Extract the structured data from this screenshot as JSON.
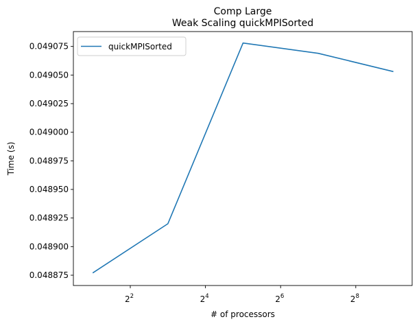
{
  "chart_data": {
    "type": "line",
    "title": "Comp Large",
    "subtitle": "Weak Scaling quickMPISorted",
    "xlabel": "# of processors",
    "ylabel": "Time (s)",
    "x_scale": "log2",
    "x": [
      2,
      8,
      32,
      128,
      512
    ],
    "series": [
      {
        "name": "quickMPISorted",
        "color": "#1f77b4",
        "values": [
          0.048877,
          0.04892,
          0.049078,
          0.049069,
          0.049053
        ]
      }
    ],
    "xticks": [
      {
        "base": "2",
        "exp": "2",
        "value": 4
      },
      {
        "base": "2",
        "exp": "4",
        "value": 16
      },
      {
        "base": "2",
        "exp": "6",
        "value": 64
      },
      {
        "base": "2",
        "exp": "8",
        "value": 256
      }
    ],
    "yticks": [
      "0.048875",
      "0.048900",
      "0.048925",
      "0.048950",
      "0.048975",
      "0.049000",
      "0.049025",
      "0.049050",
      "0.049075"
    ],
    "xlim": [
      1.4,
      724
    ],
    "ylim": [
      0.048866,
      0.049088
    ],
    "grid": false,
    "legend_position": "top-left"
  }
}
